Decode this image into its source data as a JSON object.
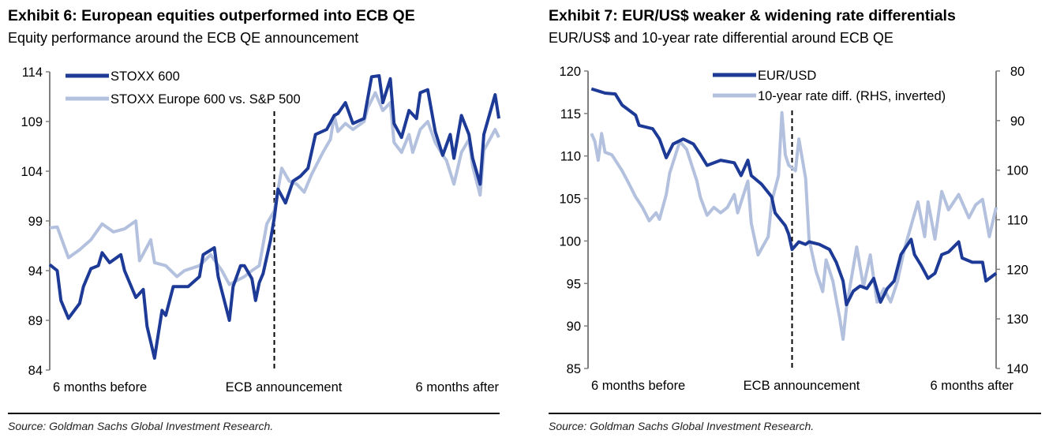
{
  "colors": {
    "dark": "#1c3a96",
    "light": "#b3c1de",
    "axis": "#808080"
  },
  "chart_data": [
    {
      "type": "line",
      "title": "Exhibit 6: European equities outperformed into ECB QE",
      "subtitle": "Equity performance around the ECB QE announcement",
      "source": "Source: Goldman Sachs Global Investment Research.",
      "x_unit": "months relative to ECB announcement",
      "xlim": [
        -6,
        6
      ],
      "ylim": [
        84,
        114
      ],
      "yticks": [
        84,
        89,
        94,
        99,
        104,
        109,
        114
      ],
      "xtick_labels": [
        {
          "x": -6,
          "label": "6 months before"
        },
        {
          "x": 0,
          "label": "ECB announcement"
        },
        {
          "x": 6,
          "label": "6 months after"
        }
      ],
      "event_line_x": 0,
      "legend": "top-left",
      "series": [
        {
          "name": "STOXX 600",
          "color_key": "dark",
          "x": [
            -6.0,
            -5.8,
            -5.7,
            -5.5,
            -5.2,
            -5.1,
            -4.9,
            -4.7,
            -4.6,
            -4.4,
            -4.1,
            -4.0,
            -3.7,
            -3.5,
            -3.4,
            -3.2,
            -3.1,
            -3.0,
            -2.9,
            -2.7,
            -2.5,
            -2.3,
            -2.0,
            -1.9,
            -1.6,
            -1.5,
            -1.2,
            -1.1,
            -0.9,
            -0.8,
            -0.6,
            -0.5,
            -0.4,
            -0.3,
            -0.1,
            0.0,
            0.1,
            0.3,
            0.5,
            0.7,
            0.9,
            1.1,
            1.4,
            1.6,
            1.7,
            1.9,
            2.1,
            2.4,
            2.6,
            2.8,
            2.9,
            3.1,
            3.2,
            3.4,
            3.6,
            3.8,
            3.9,
            4.1,
            4.3,
            4.5,
            4.7,
            4.8,
            5.0,
            5.2,
            5.3,
            5.5,
            5.6,
            5.9,
            6.0
          ],
          "y": [
            94.6,
            94.0,
            91.0,
            89.2,
            90.7,
            92.4,
            94.2,
            94.5,
            95.8,
            94.8,
            95.6,
            94.0,
            91.3,
            92.1,
            88.4,
            85.2,
            87.6,
            90.0,
            89.5,
            92.4,
            92.4,
            92.4,
            93.4,
            95.6,
            96.3,
            93.4,
            89.0,
            92.4,
            94.5,
            94.5,
            93.2,
            91.0,
            92.8,
            93.7,
            97.1,
            99.3,
            102.2,
            100.8,
            103.0,
            103.5,
            104.3,
            107.7,
            108.2,
            109.6,
            109.8,
            110.9,
            108.8,
            109.3,
            113.5,
            113.6,
            110.9,
            113.3,
            108.8,
            107.4,
            110.1,
            109.3,
            111.9,
            112.2,
            108.0,
            105.6,
            107.7,
            105.3,
            109.6,
            107.7,
            105.3,
            102.7,
            107.7,
            111.7,
            109.3
          ]
        },
        {
          "name": "STOXX Europe 600 vs. S&P 500",
          "color_key": "light",
          "x": [
            -6.0,
            -5.8,
            -5.5,
            -5.2,
            -4.9,
            -4.6,
            -4.3,
            -4.0,
            -3.7,
            -3.6,
            -3.3,
            -3.2,
            -2.9,
            -2.6,
            -2.4,
            -2.0,
            -1.7,
            -1.4,
            -1.2,
            -0.8,
            -0.6,
            -0.4,
            -0.2,
            0.0,
            0.2,
            0.4,
            0.6,
            0.8,
            1.0,
            1.3,
            1.5,
            1.6,
            1.7,
            1.9,
            2.1,
            2.4,
            2.5,
            2.7,
            2.9,
            3.1,
            3.2,
            3.4,
            3.6,
            3.7,
            3.9,
            4.1,
            4.3,
            4.5,
            4.6,
            4.8,
            5.0,
            5.2,
            5.3,
            5.5,
            5.6,
            5.9,
            6.0
          ],
          "y": [
            98.3,
            98.4,
            95.3,
            96.1,
            97.1,
            98.7,
            97.9,
            98.2,
            99.0,
            95.0,
            97.1,
            94.8,
            94.5,
            93.4,
            94.0,
            94.5,
            95.6,
            94.0,
            92.6,
            93.4,
            94.0,
            94.5,
            98.7,
            100.0,
            104.3,
            103.0,
            102.7,
            101.9,
            103.7,
            105.9,
            107.2,
            109.6,
            108.0,
            108.8,
            108.2,
            109.0,
            110.4,
            111.9,
            110.1,
            110.9,
            106.9,
            105.9,
            107.7,
            105.9,
            108.2,
            109.0,
            106.9,
            105.6,
            105.1,
            102.7,
            105.9,
            107.2,
            104.5,
            101.6,
            106.1,
            108.2,
            107.4
          ]
        }
      ]
    },
    {
      "type": "line",
      "title": "Exhibit 7: EUR/US$ weaker & widening rate differentials",
      "subtitle": "EUR/US$ and 10-year rate differential around ECB QE",
      "source": "Source: Goldman Sachs Global Investment Research.",
      "x_unit": "months relative to ECB announcement",
      "xlim": [
        -6,
        6
      ],
      "ylim": [
        85,
        120
      ],
      "yticks": [
        85,
        90,
        95,
        100,
        105,
        110,
        115,
        120
      ],
      "y2lim": [
        140,
        80
      ],
      "y2ticks": [
        80,
        90,
        100,
        110,
        120,
        130,
        140
      ],
      "y2_inverted": true,
      "xtick_labels": [
        {
          "x": -6,
          "label": "6 months before"
        },
        {
          "x": 0,
          "label": "ECB announcement"
        },
        {
          "x": 6,
          "label": "6 months after"
        }
      ],
      "event_line_x": 0,
      "legend": "top-center",
      "series": [
        {
          "name": "EUR/USD",
          "color_key": "dark",
          "axis": "left",
          "x": [
            -5.9,
            -5.5,
            -5.2,
            -5.0,
            -4.6,
            -4.5,
            -4.1,
            -3.9,
            -3.7,
            -3.5,
            -3.2,
            -2.9,
            -2.7,
            -2.5,
            -2.1,
            -1.7,
            -1.5,
            -1.3,
            -1.2,
            -0.9,
            -0.6,
            -0.5,
            -0.2,
            -0.1,
            0.0,
            0.2,
            0.4,
            0.5,
            0.8,
            1.1,
            1.3,
            1.5,
            1.6,
            1.8,
            2.0,
            2.2,
            2.4,
            2.6,
            2.8,
            3.0,
            3.2,
            3.5,
            3.6,
            3.8,
            4.0,
            4.2,
            4.4,
            4.6,
            4.9,
            5.0,
            5.3,
            5.6,
            5.7,
            5.9,
            6.0
          ],
          "y": [
            117.9,
            117.4,
            117.3,
            116.0,
            114.8,
            113.6,
            113.2,
            112.0,
            109.8,
            111.4,
            112.0,
            111.4,
            110.2,
            108.9,
            109.5,
            109.2,
            107.7,
            109.5,
            107.7,
            106.7,
            105.2,
            103.3,
            101.8,
            100.8,
            99.0,
            99.9,
            99.6,
            99.9,
            99.6,
            99.0,
            97.5,
            95.3,
            92.5,
            94.1,
            94.7,
            94.4,
            95.6,
            92.8,
            94.4,
            95.3,
            98.4,
            100.2,
            98.4,
            97.1,
            95.6,
            96.2,
            98.4,
            98.7,
            99.9,
            98.0,
            97.5,
            97.5,
            95.3,
            95.9,
            96.2
          ]
        },
        {
          "name": "10-year rate diff. (RHS, inverted)",
          "color_key": "light",
          "axis": "right",
          "x": [
            -5.9,
            -5.8,
            -5.7,
            -5.6,
            -5.5,
            -5.3,
            -5.0,
            -4.8,
            -4.6,
            -4.4,
            -4.2,
            -4.0,
            -3.9,
            -3.7,
            -3.6,
            -3.3,
            -3.1,
            -2.8,
            -2.7,
            -2.5,
            -2.3,
            -2.1,
            -1.9,
            -1.7,
            -1.6,
            -1.3,
            -1.2,
            -1.0,
            -0.7,
            -0.6,
            -0.4,
            -0.3,
            -0.2,
            -0.1,
            0.1,
            0.2,
            0.4,
            0.5,
            0.7,
            0.9,
            1.0,
            1.2,
            1.4,
            1.5,
            1.6,
            1.9,
            2.1,
            2.3,
            2.5,
            2.7,
            2.9,
            3.1,
            3.3,
            3.5,
            3.7,
            3.9,
            4.0,
            4.2,
            4.4,
            4.6,
            4.9,
            5.2,
            5.4,
            5.6,
            5.8,
            6.0
          ],
          "y": [
            92.6,
            94.2,
            98.0,
            92.6,
            96.4,
            96.9,
            100.1,
            102.7,
            105.4,
            107.5,
            110.2,
            108.6,
            109.9,
            104.9,
            100.6,
            94.2,
            95.8,
            102.2,
            105.4,
            109.1,
            107.5,
            108.6,
            107.5,
            104.9,
            108.6,
            102.2,
            110.7,
            117.1,
            113.4,
            106.4,
            101.1,
            88.4,
            96.9,
            99.0,
            100.1,
            93.7,
            101.7,
            113.9,
            120.3,
            124.5,
            118.1,
            122.4,
            129.8,
            134.1,
            127.7,
            115.5,
            123.5,
            117.1,
            126.6,
            123.9,
            126.6,
            122.4,
            116.0,
            111.2,
            106.4,
            113.4,
            106.4,
            113.9,
            104.3,
            108.0,
            104.9,
            109.6,
            107.0,
            105.9,
            113.4,
            107.5
          ]
        }
      ]
    }
  ]
}
